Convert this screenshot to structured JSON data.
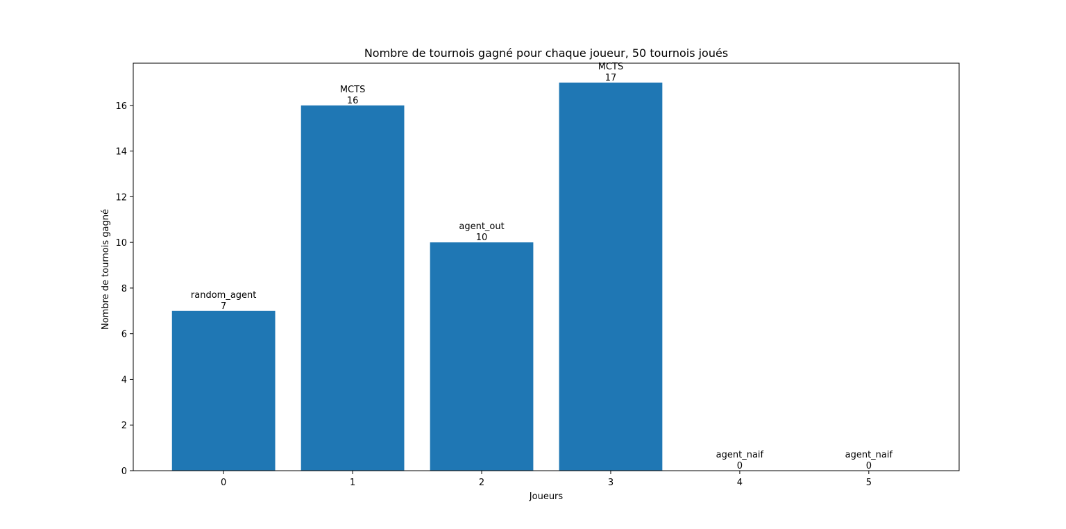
{
  "chart_data": {
    "type": "bar",
    "title": "Nombre de tournois gagné pour chaque joueur, 50 tournois joués",
    "xlabel": "Joueurs",
    "ylabel": "Nombre de tournois gagné",
    "categories": [
      "0",
      "1",
      "2",
      "3",
      "4",
      "5"
    ],
    "values": [
      7,
      16,
      10,
      17,
      0,
      0
    ],
    "bar_labels": [
      "random_agent",
      "MCTS",
      "agent_out",
      "MCTS",
      "agent_naif",
      "agent_naif"
    ],
    "yticks": [
      0,
      2,
      4,
      6,
      8,
      10,
      12,
      14,
      16
    ],
    "xlim": [
      -0.7,
      5.7
    ],
    "ylim": [
      0,
      17.85
    ],
    "grid": false,
    "legend": "none",
    "colors": {
      "bar": "#1f77b4",
      "axis": "#000000"
    }
  }
}
